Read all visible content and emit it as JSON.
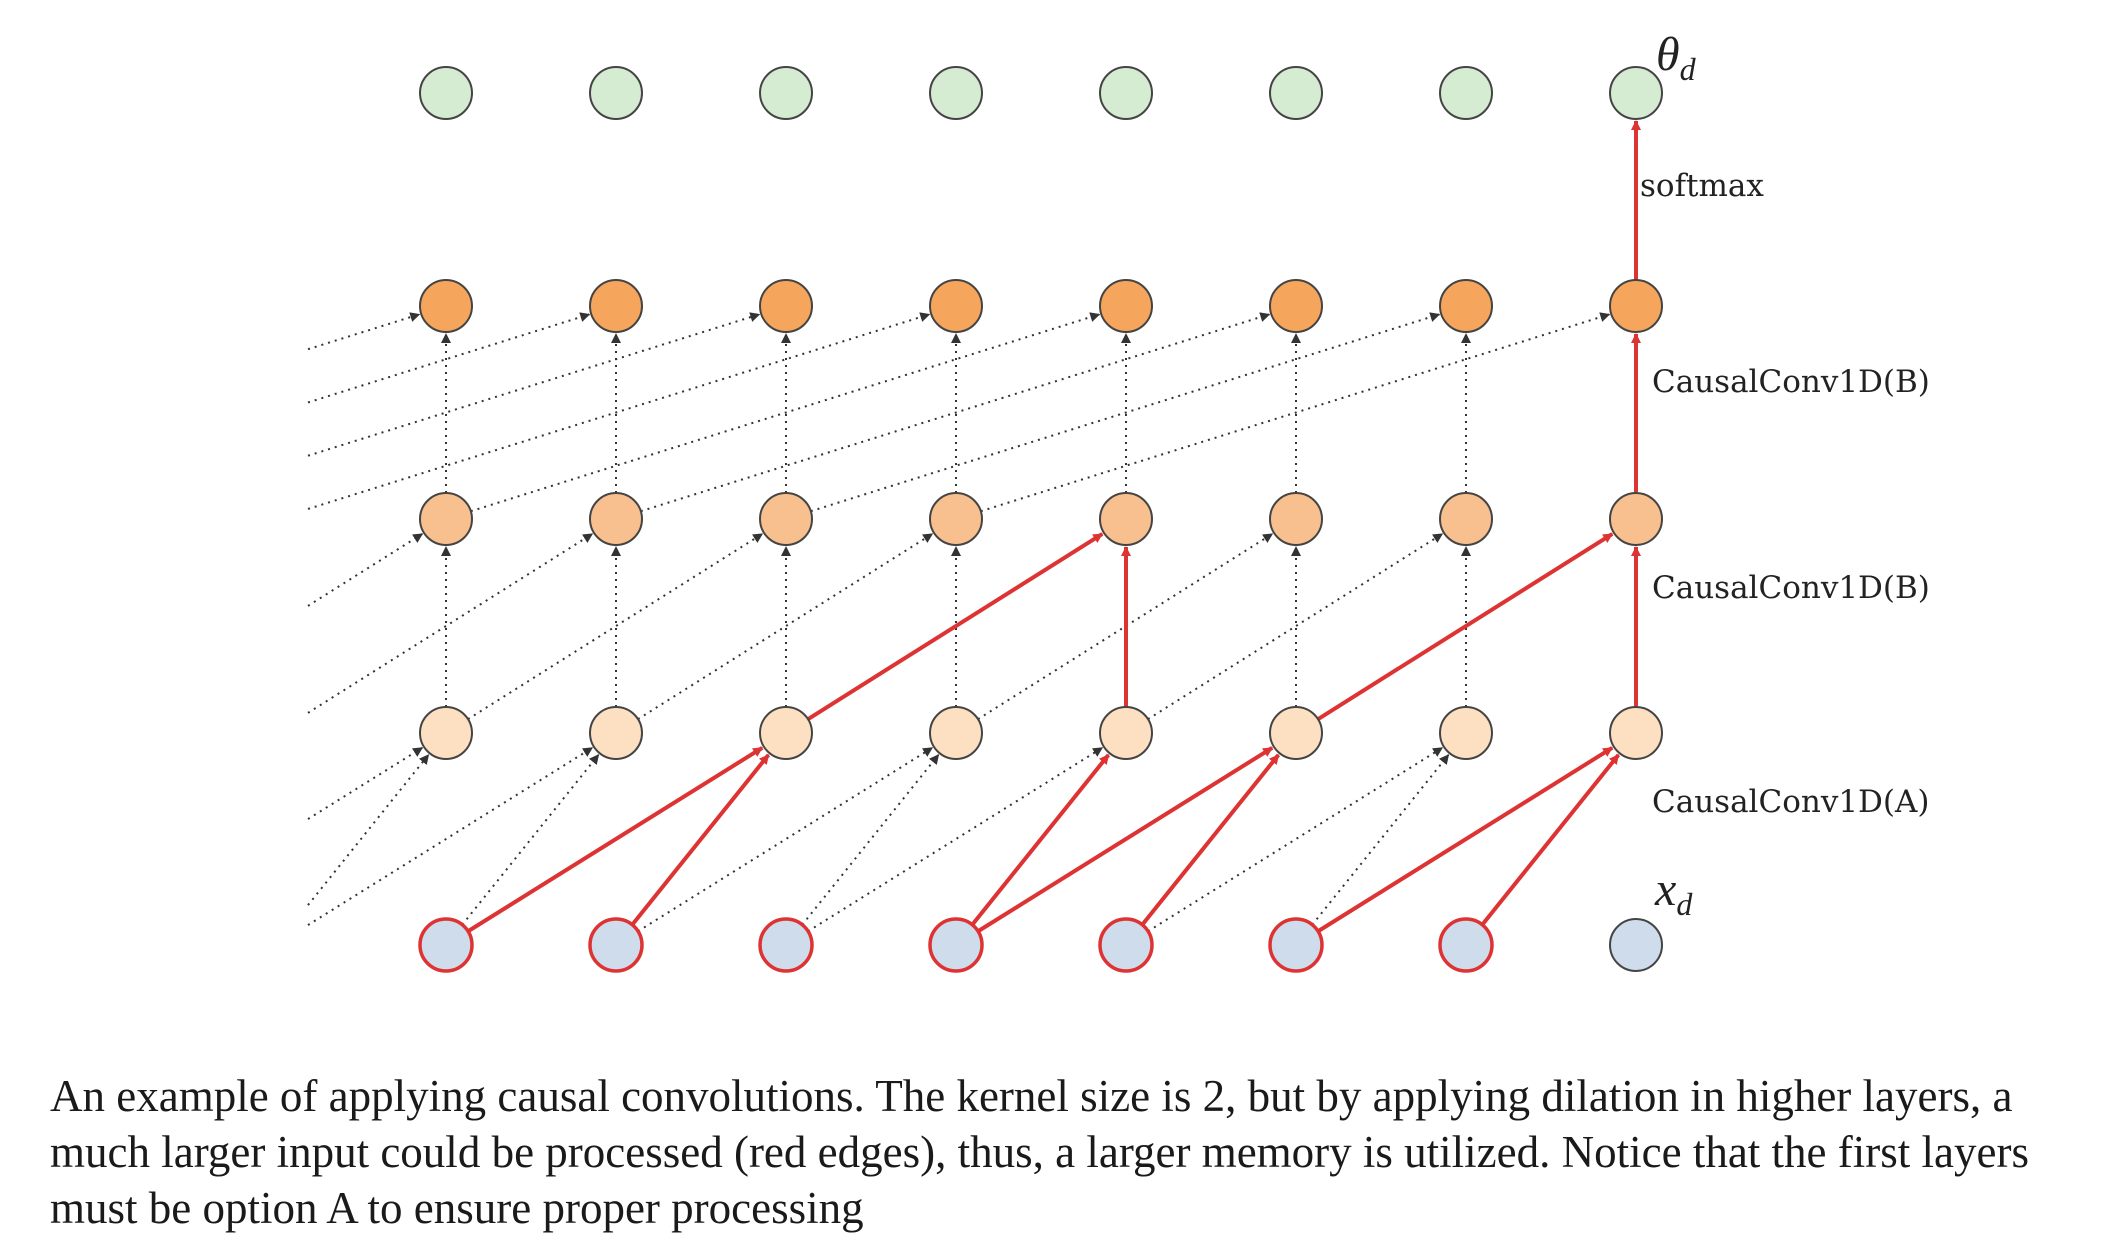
{
  "diagram": {
    "columns": 8,
    "rows": [
      {
        "id": "output",
        "fill": "#d5ebd2",
        "stroke": "#444444"
      },
      {
        "id": "hidden3",
        "fill": "#f5a55c",
        "stroke": "#444444"
      },
      {
        "id": "hidden2",
        "fill": "#f8c08e",
        "stroke": "#444444"
      },
      {
        "id": "hidden1",
        "fill": "#fde0c2",
        "stroke": "#444444"
      },
      {
        "id": "input",
        "fill": "#cfdcec",
        "stroke": "#dd3333"
      }
    ],
    "input_last_stroke": "#444444",
    "colors": {
      "active_edge": "#dd3333",
      "inactive_edge": "#333333"
    },
    "labels": {
      "output_symbol": "θ",
      "output_subscript": "d",
      "input_symbol": "x",
      "input_subscript": "d",
      "softmax": "softmax",
      "layer3": "CausalConv1D(B)",
      "layer2": "CausalConv1D(B)",
      "layer1": "CausalConv1D(A)"
    },
    "active_edges": [
      {
        "from": [
          4,
          0
        ],
        "to": [
          3,
          2
        ]
      },
      {
        "from": [
          4,
          1
        ],
        "to": [
          3,
          2
        ]
      },
      {
        "from": [
          4,
          3
        ],
        "to": [
          3,
          4
        ]
      },
      {
        "from": [
          4,
          3
        ],
        "to": [
          3,
          5
        ]
      },
      {
        "from": [
          4,
          4
        ],
        "to": [
          3,
          5
        ]
      },
      {
        "from": [
          4,
          5
        ],
        "to": [
          3,
          7
        ]
      },
      {
        "from": [
          4,
          6
        ],
        "to": [
          3,
          7
        ]
      },
      {
        "from": [
          3,
          2
        ],
        "to": [
          2,
          4
        ]
      },
      {
        "from": [
          3,
          4
        ],
        "to": [
          2,
          4
        ]
      },
      {
        "from": [
          3,
          5
        ],
        "to": [
          2,
          7
        ]
      },
      {
        "from": [
          3,
          7
        ],
        "to": [
          2,
          7
        ]
      },
      {
        "from": [
          2,
          4
        ],
        "to": [
          1,
          7
        ]
      },
      {
        "from": [
          2,
          7
        ],
        "to": [
          1,
          7
        ]
      },
      {
        "from": [
          1,
          7
        ],
        "to": [
          0,
          7
        ]
      }
    ]
  },
  "caption": "An example of applying causal convolutions. The kernel size is 2, but by applying dilation in higher layers, a much larger input could be processed (red edges), thus, a larger memory is utilized. Notice that the first layers must be option A to ensure proper processing"
}
